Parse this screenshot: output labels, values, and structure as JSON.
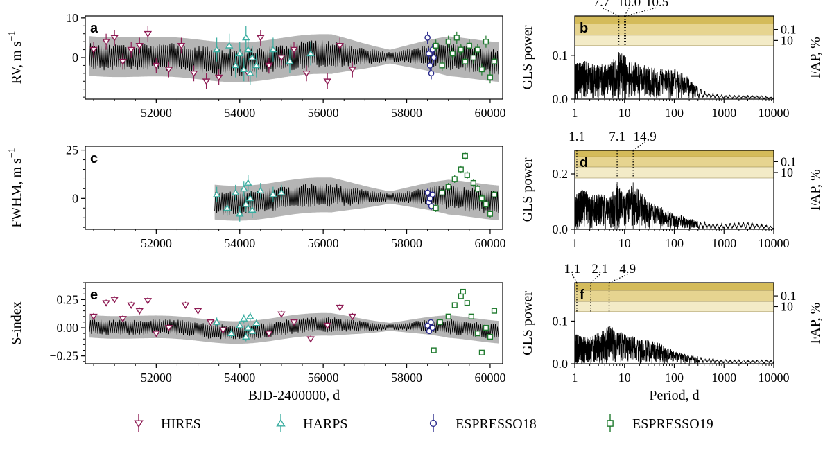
{
  "chart_data": [
    {
      "id": "a",
      "type": "scatter",
      "letter": "a",
      "ylabel": "RV, m s",
      "ylabel_sup": "−1",
      "xlabel": "",
      "xlim": [
        50300,
        60300
      ],
      "ylim": [
        -10.5,
        10.5
      ],
      "xticks": [
        "52000",
        "54000",
        "56000",
        "58000",
        "60000"
      ],
      "yticks": [
        "10",
        "0"
      ],
      "ytick_values": [
        10,
        0
      ],
      "band_halfwidth": 5,
      "model_segments": [
        [
          50400,
          60200
        ]
      ],
      "series": [
        {
          "name": "HIRES",
          "marker": "tri-down",
          "color": "#8e1c54",
          "x": [
            50500,
            50800,
            51000,
            51200,
            51400,
            51600,
            51800,
            52000,
            52300,
            52600,
            52900,
            53200,
            53500,
            54200,
            54500,
            54700,
            55000,
            55300,
            55600,
            56100,
            56400,
            56700
          ],
          "y": [
            2,
            4,
            5,
            -1,
            2,
            3,
            6,
            -2,
            -3,
            3,
            -4,
            -6,
            -5,
            -4,
            5,
            -2,
            0,
            2,
            -4,
            -6,
            3,
            -3
          ],
          "err": [
            2,
            2,
            2,
            2,
            2,
            2,
            2,
            2,
            2,
            2,
            2,
            2,
            2,
            2,
            2,
            2,
            2,
            2,
            2,
            2,
            2,
            2
          ]
        },
        {
          "name": "HARPS",
          "marker": "tri-up",
          "color": "#3aada0",
          "x": [
            53450,
            53750,
            53900,
            54000,
            54100,
            54150,
            54200,
            54250,
            54300,
            54400,
            54800,
            55200,
            55700
          ],
          "y": [
            2,
            3,
            -2,
            1,
            -3,
            5,
            2,
            -4,
            0,
            -2,
            2,
            -1,
            1
          ],
          "err": [
            3,
            3,
            3,
            3,
            3,
            3,
            3,
            3,
            3,
            3,
            3,
            3,
            3
          ]
        },
        {
          "name": "ESPRESSO18",
          "marker": "circle",
          "color": "#2a2a8c",
          "x": [
            58500,
            58530,
            58560,
            58590,
            58620,
            58650
          ],
          "y": [
            5,
            1,
            -2,
            -4,
            2,
            0
          ],
          "err": [
            1.5,
            1.5,
            1.5,
            1.5,
            1.5,
            1.5
          ]
        },
        {
          "name": "ESPRESSO19",
          "marker": "square",
          "color": "#1f7a2e",
          "x": [
            58700,
            58850,
            59000,
            59100,
            59200,
            59300,
            59400,
            59500,
            59600,
            59700,
            59800,
            59900,
            60000,
            60100
          ],
          "y": [
            3,
            -2,
            4,
            1,
            5,
            2,
            -1,
            3,
            0,
            2,
            -3,
            4,
            -5,
            -1
          ],
          "err": [
            1.5,
            1.5,
            1.5,
            1.5,
            1.5,
            1.5,
            1.5,
            1.5,
            1.5,
            1.5,
            1.5,
            1.5,
            1.5,
            1.5
          ]
        }
      ]
    },
    {
      "id": "c",
      "type": "scatter",
      "letter": "c",
      "ylabel": "FWHM, m s",
      "ylabel_sup": "−1",
      "xlabel": "",
      "xlim": [
        50300,
        60300
      ],
      "ylim": [
        -16,
        27
      ],
      "xticks": [
        "52000",
        "54000",
        "56000",
        "58000",
        "60000"
      ],
      "yticks": [
        "25",
        "0"
      ],
      "ytick_values": [
        25,
        0
      ],
      "band_halfwidth": 9,
      "model_segments": [
        [
          53400,
          60200
        ]
      ],
      "series": [
        {
          "name": "HARPS",
          "marker": "tri-up",
          "color": "#3aada0",
          "x": [
            53450,
            53700,
            53900,
            54000,
            54100,
            54150,
            54200,
            54250,
            54300,
            54500,
            54800,
            55000
          ],
          "y": [
            2,
            -5,
            3,
            -8,
            5,
            -3,
            8,
            0,
            -6,
            4,
            2,
            3
          ],
          "err": [
            4,
            4,
            4,
            4,
            4,
            4,
            4,
            4,
            4,
            4,
            4,
            4
          ]
        },
        {
          "name": "ESPRESSO18",
          "marker": "circle",
          "color": "#2a2a8c",
          "x": [
            58500,
            58530,
            58560,
            58590,
            58620
          ],
          "y": [
            3,
            -2,
            0,
            -4,
            2
          ],
          "err": [
            2,
            2,
            2,
            2,
            2
          ]
        },
        {
          "name": "ESPRESSO19",
          "marker": "square",
          "color": "#1f7a2e",
          "x": [
            58700,
            58850,
            59000,
            59150,
            59300,
            59400,
            59450,
            59600,
            59700,
            59800,
            59900,
            60000,
            60100
          ],
          "y": [
            -5,
            3,
            6,
            10,
            15,
            22,
            12,
            8,
            5,
            0,
            -3,
            -8,
            2
          ],
          "err": [
            2,
            2,
            2,
            2,
            2,
            2,
            2,
            2,
            2,
            2,
            2,
            2,
            2
          ]
        }
      ]
    },
    {
      "id": "e",
      "type": "scatter",
      "letter": "e",
      "ylabel": "S-index",
      "ylabel_sup": "",
      "xlabel": "BJD-2400000, d",
      "xlim": [
        50300,
        60300
      ],
      "ylim": [
        -0.32,
        0.4
      ],
      "xticks": [
        "52000",
        "54000",
        "56000",
        "58000",
        "60000"
      ],
      "yticks": [
        "0.25",
        "0.00",
        "−0.25"
      ],
      "ytick_values": [
        0.25,
        0,
        -0.25
      ],
      "band_halfwidth": 0.1,
      "model_segments": [
        [
          50400,
          60200
        ]
      ],
      "series": [
        {
          "name": "HIRES",
          "marker": "tri-down",
          "color": "#8e1c54",
          "x": [
            50500,
            50800,
            51000,
            51200,
            51400,
            51600,
            51800,
            52000,
            52300,
            52700,
            53000,
            53300,
            53600,
            54700,
            55000,
            55300,
            55700,
            56100,
            56400,
            56700
          ],
          "y": [
            0.1,
            0.22,
            0.25,
            0.08,
            0.2,
            0.15,
            0.24,
            -0.05,
            0.0,
            0.2,
            0.15,
            0.05,
            -0.02,
            -0.05,
            0.12,
            0.05,
            -0.1,
            0.02,
            0.18,
            0.1
          ],
          "err": [
            0.03,
            0.03,
            0.03,
            0.03,
            0.03,
            0.03,
            0.03,
            0.03,
            0.03,
            0.03,
            0.03,
            0.03,
            0.03,
            0.03,
            0.03,
            0.03,
            0.03,
            0.03,
            0.03,
            0.03
          ]
        },
        {
          "name": "HARPS",
          "marker": "tri-up",
          "color": "#3aada0",
          "x": [
            53450,
            53800,
            54000,
            54100,
            54150,
            54200,
            54250,
            54300,
            54400
          ],
          "y": [
            0.05,
            -0.05,
            0.02,
            0.08,
            -0.08,
            0.0,
            0.1,
            -0.03,
            0.04
          ],
          "err": [
            0.04,
            0.04,
            0.04,
            0.04,
            0.04,
            0.04,
            0.04,
            0.04,
            0.04
          ]
        },
        {
          "name": "ESPRESSO18",
          "marker": "circle",
          "color": "#2a2a8c",
          "x": [
            58500,
            58540,
            58580,
            58620
          ],
          "y": [
            0.02,
            -0.03,
            0.05,
            0.0
          ],
          "err": [
            0.02,
            0.02,
            0.02,
            0.02
          ]
        },
        {
          "name": "ESPRESSO19",
          "marker": "square",
          "color": "#1f7a2e",
          "x": [
            58650,
            58800,
            59000,
            59150,
            59300,
            59350,
            59450,
            59550,
            59700,
            59800,
            59900,
            60000,
            60100
          ],
          "y": [
            -0.2,
            0.05,
            0.1,
            0.2,
            0.28,
            0.32,
            0.22,
            0.1,
            -0.05,
            -0.22,
            0.0,
            -0.08,
            0.15
          ],
          "err": [
            0.02,
            0.02,
            0.02,
            0.02,
            0.02,
            0.02,
            0.02,
            0.02,
            0.02,
            0.02,
            0.02,
            0.02,
            0.02
          ]
        }
      ]
    },
    {
      "id": "b",
      "type": "line",
      "letter": "b",
      "xscale": "log",
      "ylabel": "GLS power",
      "ylabel_right": "FAP, %",
      "xlabel": "",
      "xlim": [
        1,
        10000
      ],
      "ylim": [
        0,
        0.19
      ],
      "xticks": [
        "1",
        "10",
        "100",
        "1000",
        "10000"
      ],
      "yticks": [
        "0.0",
        "0.1"
      ],
      "ytick_values": [
        0.0,
        0.1
      ],
      "fap_levels": [
        0.172,
        0.146,
        0.122
      ],
      "fap_labels": [
        "0.1",
        "10"
      ],
      "fap_label_values": [
        0.159,
        0.134
      ],
      "periods_marked": [
        7.7,
        10.0,
        10.5
      ],
      "period_labels": [
        "7.7",
        "10.0",
        "10.5"
      ],
      "peak_envelope": [
        [
          1,
          0.08
        ],
        [
          1.5,
          0.09
        ],
        [
          2,
          0.08
        ],
        [
          3,
          0.08
        ],
        [
          5,
          0.08
        ],
        [
          8,
          0.11
        ],
        [
          12,
          0.09
        ],
        [
          20,
          0.08
        ],
        [
          50,
          0.07
        ],
        [
          100,
          0.07
        ],
        [
          200,
          0.05
        ],
        [
          300,
          0.03
        ],
        [
          400,
          0.02
        ],
        [
          1000,
          0.01
        ],
        [
          4000,
          0.01
        ],
        [
          10000,
          0.005
        ]
      ]
    },
    {
      "id": "d",
      "type": "line",
      "letter": "d",
      "xscale": "log",
      "ylabel": "GLS power",
      "ylabel_right": "FAP, %",
      "xlabel": "",
      "xlim": [
        1,
        10000
      ],
      "ylim": [
        0,
        0.285
      ],
      "xticks": [
        "1",
        "10",
        "100",
        "1000",
        "10000"
      ],
      "yticks": [
        "0.0",
        "0.2"
      ],
      "ytick_values": [
        0.0,
        0.2
      ],
      "fap_levels": [
        0.262,
        0.225,
        0.185
      ],
      "fap_labels": [
        "0.1",
        "10"
      ],
      "fap_label_values": [
        0.244,
        0.205
      ],
      "periods_marked": [
        1.1,
        7.1,
        14.9
      ],
      "period_labels": [
        "1.1",
        "7.1",
        "14.9"
      ],
      "peak_envelope": [
        [
          1,
          0.12
        ],
        [
          1.5,
          0.15
        ],
        [
          2,
          0.12
        ],
        [
          3,
          0.13
        ],
        [
          5,
          0.12
        ],
        [
          7.1,
          0.17
        ],
        [
          10,
          0.12
        ],
        [
          15,
          0.17
        ],
        [
          30,
          0.1
        ],
        [
          60,
          0.08
        ],
        [
          100,
          0.06
        ],
        [
          300,
          0.03
        ],
        [
          1000,
          0.02
        ],
        [
          3000,
          0.03
        ],
        [
          10000,
          0.01
        ]
      ]
    },
    {
      "id": "f",
      "type": "line",
      "letter": "f",
      "xscale": "log",
      "ylabel": "GLS power",
      "ylabel_right": "FAP, %",
      "xlabel": "Period, d",
      "xlim": [
        1,
        10000
      ],
      "ylim": [
        0,
        0.19
      ],
      "xticks": [
        "1",
        "10",
        "100",
        "1000",
        "10000"
      ],
      "yticks": [
        "0.0",
        "0.1"
      ],
      "ytick_values": [
        0.0,
        0.1
      ],
      "fap_levels": [
        0.172,
        0.146,
        0.122
      ],
      "fap_labels": [
        "0.1",
        "10"
      ],
      "fap_label_values": [
        0.159,
        0.134
      ],
      "periods_marked": [
        1.1,
        2.1,
        4.9
      ],
      "period_labels": [
        "1.1",
        "2.1",
        "4.9"
      ],
      "peak_envelope": [
        [
          1,
          0.07
        ],
        [
          2,
          0.06
        ],
        [
          4.9,
          0.09
        ],
        [
          10,
          0.07
        ],
        [
          20,
          0.06
        ],
        [
          50,
          0.05
        ],
        [
          100,
          0.03
        ],
        [
          200,
          0.02
        ],
        [
          500,
          0.015
        ],
        [
          1000,
          0.01
        ],
        [
          10000,
          0.01
        ]
      ]
    }
  ],
  "legend": [
    {
      "name": "HIRES",
      "marker": "tri-down",
      "color": "#8e1c54"
    },
    {
      "name": "HARPS",
      "marker": "tri-up",
      "color": "#3aada0"
    },
    {
      "name": "ESPRESSO18",
      "marker": "circle",
      "color": "#2a2a8c"
    },
    {
      "name": "ESPRESSO19",
      "marker": "square",
      "color": "#1f7a2e"
    }
  ],
  "colors": {
    "band": "#b5b5b5",
    "fap_fill_top": "#d4bb5a",
    "fap_fill_mid": "#e6d490",
    "fap_fill_low": "#f3ebc7"
  }
}
